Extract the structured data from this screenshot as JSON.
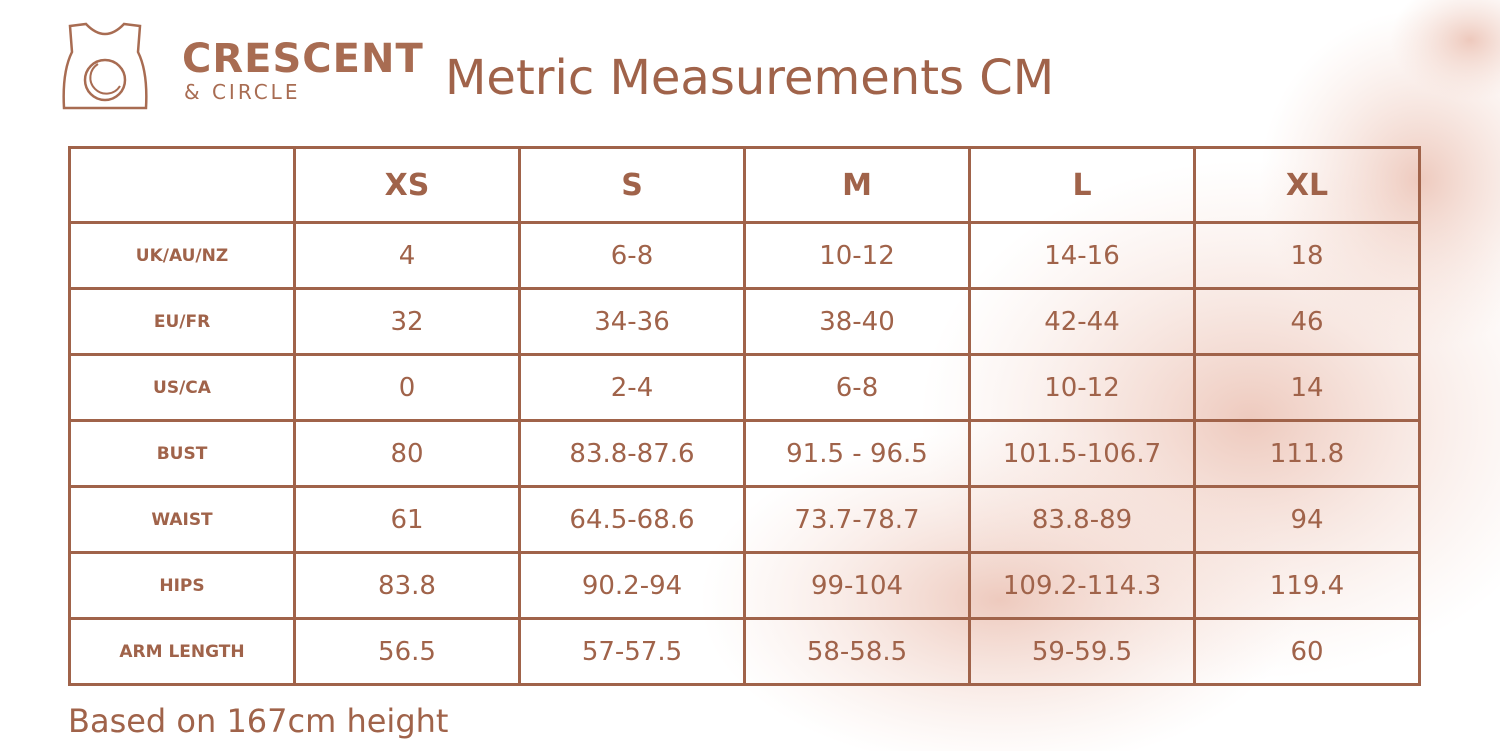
{
  "header": {
    "brand": {
      "name": "CRESCENT",
      "tagline": "& CIRCLE"
    },
    "title": "Metric Measurements CM"
  },
  "table": {
    "columns": [
      "XS",
      "S",
      "M",
      "L",
      "XL"
    ],
    "rows": [
      {
        "label": "UK/AU/NZ",
        "cells": [
          "4",
          "6-8",
          "10-12",
          "14-16",
          "18"
        ]
      },
      {
        "label": "EU/FR",
        "cells": [
          "32",
          "34-36",
          "38-40",
          "42-44",
          "46"
        ]
      },
      {
        "label": "US/CA",
        "cells": [
          "0",
          "2-4",
          "6-8",
          "10-12",
          "14"
        ]
      },
      {
        "label": "BUST",
        "cells": [
          "80",
          "83.8-87.6",
          "91.5 - 96.5",
          "101.5-106.7",
          "111.8"
        ]
      },
      {
        "label": "WAIST",
        "cells": [
          "61",
          "64.5-68.6",
          "73.7-78.7",
          "83.8-89",
          "94"
        ]
      },
      {
        "label": "HIPS",
        "cells": [
          "83.8",
          "90.2-94",
          "99-104",
          "109.2-114.3",
          "119.4"
        ]
      },
      {
        "label": "ARM LENGTH",
        "cells": [
          "56.5",
          "57-57.5",
          "58-58.5",
          "59-59.5",
          "60"
        ]
      }
    ]
  },
  "footer": {
    "note": "Based on 167cm height"
  }
}
